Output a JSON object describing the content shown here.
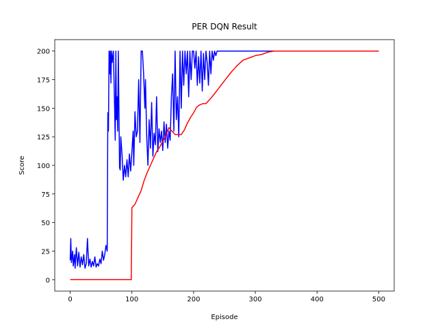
{
  "chart_data": {
    "type": "line",
    "title": "PER DQN Result",
    "x_label": "Episode",
    "y_label": "Score",
    "xlim": [
      -25,
      525
    ],
    "ylim": [
      -10,
      210
    ],
    "xticks": [
      0,
      100,
      200,
      300,
      400,
      500
    ],
    "yticks": [
      0,
      25,
      50,
      75,
      100,
      125,
      150,
      175,
      200
    ],
    "grid": false,
    "series": [
      {
        "color": "#0000ff",
        "x": [
          0,
          1,
          2,
          4,
          5,
          7,
          8,
          10,
          12,
          14,
          16,
          18,
          20,
          22,
          24,
          26,
          28,
          30,
          32,
          34,
          36,
          38,
          40,
          42,
          44,
          46,
          48,
          50,
          52,
          54,
          56,
          58,
          60,
          61,
          62,
          63,
          64,
          65,
          66,
          67,
          68,
          70,
          72,
          73,
          74,
          75,
          76,
          77,
          78,
          80,
          81,
          82,
          84,
          86,
          88,
          90,
          92,
          94,
          96,
          98,
          100,
          102,
          103,
          105,
          107,
          109,
          111,
          113,
          115,
          117,
          119,
          121,
          122,
          124,
          126,
          128,
          130,
          132,
          134,
          136,
          138,
          140,
          142,
          144,
          146,
          148,
          150,
          152,
          154,
          156,
          158,
          160,
          162,
          164,
          166,
          168,
          170,
          172,
          174,
          176,
          178,
          180,
          182,
          184,
          186,
          188,
          190,
          192,
          194,
          196,
          198,
          200,
          202,
          204,
          206,
          208,
          210,
          212,
          214,
          216,
          218,
          220,
          222,
          224,
          226,
          228,
          230,
          232,
          234,
          236,
          238,
          240,
          500
        ],
        "values": [
          17,
          36,
          15,
          25,
          12,
          22,
          10,
          28,
          12,
          24,
          11,
          20,
          13,
          22,
          10,
          14,
          36,
          12,
          18,
          11,
          16,
          12,
          20,
          11,
          14,
          12,
          18,
          14,
          25,
          17,
          22,
          30,
          25,
          146,
          130,
          200,
          180,
          200,
          172,
          200,
          190,
          200,
          150,
          122,
          200,
          140,
          160,
          130,
          200,
          98,
          96,
          125,
          110,
          87,
          100,
          90,
          105,
          90,
          110,
          95,
          112,
          130,
          100,
          147,
          125,
          130,
          175,
          120,
          200,
          200,
          180,
          150,
          175,
          125,
          100,
          140,
          115,
          155,
          108,
          128,
          118,
          160,
          112,
          132,
          120,
          130,
          113,
          138,
          120,
          136,
          115,
          130,
          122,
          160,
          180,
          130,
          200,
          140,
          160,
          125,
          200,
          150,
          200,
          170,
          200,
          180,
          200,
          160,
          200,
          175,
          200,
          200,
          185,
          200,
          170,
          195,
          172,
          200,
          165,
          198,
          175,
          200,
          190,
          170,
          200,
          180,
          200,
          192,
          200,
          196,
          200,
          200,
          200
        ]
      },
      {
        "color": "#ff0000",
        "x": [
          0,
          99,
          100,
          105,
          110,
          115,
          120,
          125,
          130,
          135,
          140,
          145,
          150,
          155,
          160,
          165,
          170,
          175,
          180,
          185,
          190,
          195,
          200,
          205,
          210,
          215,
          220,
          225,
          230,
          240,
          250,
          260,
          270,
          280,
          290,
          300,
          310,
          320,
          330,
          500
        ],
        "values": [
          0,
          0,
          63,
          66,
          72,
          78,
          87,
          94,
          100,
          106,
          112,
          116,
          121,
          126,
          133,
          130,
          127,
          127,
          127,
          131,
          137,
          142,
          146,
          151,
          153,
          154,
          154,
          157,
          160,
          167,
          174,
          181,
          187,
          192,
          194,
          196,
          197,
          199,
          200,
          200
        ]
      }
    ]
  }
}
